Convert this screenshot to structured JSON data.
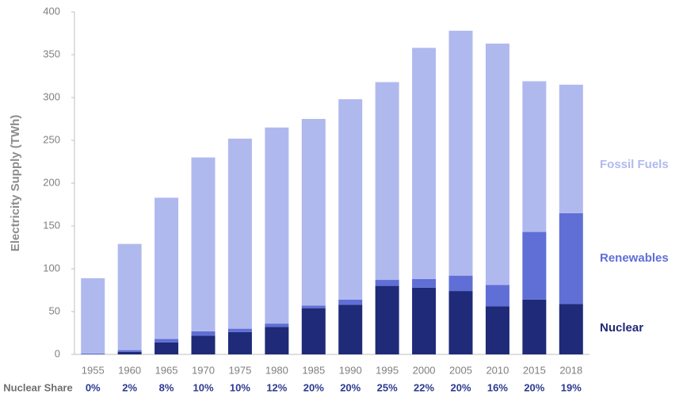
{
  "chart_data": {
    "type": "stacked_bar",
    "y_label": "Electricity Supply (TWh)",
    "categories": [
      "1955",
      "1960",
      "1965",
      "1970",
      "1975",
      "1980",
      "1985",
      "1990",
      "1995",
      "2000",
      "2005",
      "2010",
      "2015",
      "2018"
    ],
    "series": [
      {
        "name": "Nuclear",
        "color": "#1f2a78",
        "values": [
          0,
          3,
          14,
          22,
          26,
          32,
          54,
          58,
          80,
          78,
          74,
          56,
          64,
          59
        ]
      },
      {
        "name": "Renewables",
        "color": "#5f6fd6",
        "values": [
          1,
          2,
          4,
          5,
          4,
          4,
          3,
          6,
          7,
          10,
          18,
          25,
          79,
          106
        ]
      },
      {
        "name": "Fossil Fuels",
        "color": "#b0b9ee",
        "values": [
          88,
          124,
          165,
          203,
          222,
          229,
          218,
          234,
          231,
          270,
          286,
          282,
          176,
          150
        ]
      }
    ],
    "share_title": "Nuclear Share",
    "share_labels": [
      "0%",
      "2%",
      "8%",
      "10%",
      "10%",
      "12%",
      "20%",
      "20%",
      "25%",
      "22%",
      "20%",
      "16%",
      "20%",
      "19%"
    ],
    "ylim": [
      0,
      400
    ],
    "yticks": [
      0,
      50,
      100,
      150,
      200,
      250,
      300,
      350,
      400
    ],
    "grid": false
  }
}
